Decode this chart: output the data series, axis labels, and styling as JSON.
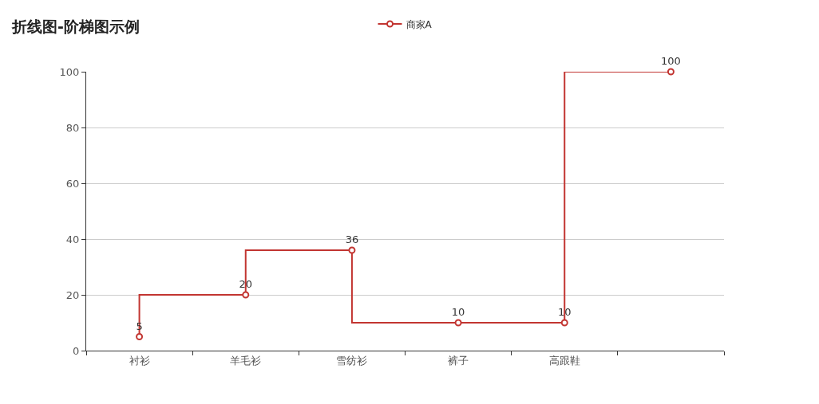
{
  "chart_data": {
    "type": "step",
    "title": "折线图-阶梯图示例",
    "categories": [
      "衬衫",
      "羊毛衫",
      "雪纺衫",
      "裤子",
      "高跟鞋",
      null
    ],
    "series": [
      {
        "name": "商家A",
        "color": "#c23531",
        "values": [
          5,
          20,
          36,
          10,
          10,
          100
        ]
      }
    ],
    "ylim": [
      0,
      100
    ],
    "yticks": [
      0,
      20,
      40,
      60,
      80,
      100
    ],
    "grid": "y",
    "legend": "top",
    "marker": "circle",
    "line_style": "solid",
    "data_labels": true
  }
}
